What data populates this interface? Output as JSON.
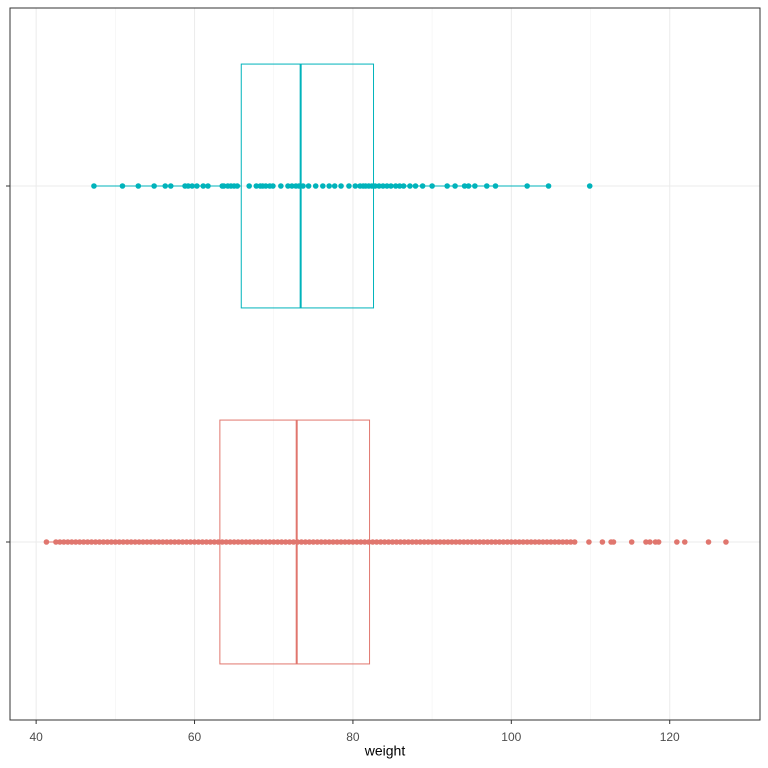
{
  "chart_data": {
    "type": "boxplot",
    "orientation": "horizontal",
    "x_label": "weight",
    "xlim": [
      36.7,
      131.4
    ],
    "xticks": [
      40,
      60,
      80,
      100,
      120
    ],
    "grid": true,
    "series": [
      {
        "color": "#e0766e",
        "q1": 63.2,
        "median": 72.9,
        "q3": 82.1,
        "whisker_low": 41.3,
        "whisker_high": 108,
        "points": [
          41.3,
          42.5,
          43,
          43.5,
          44,
          44.5,
          45,
          45.5,
          46,
          46.5,
          47,
          47.5,
          48,
          48.5,
          49,
          49.5,
          50,
          50.5,
          51,
          51.5,
          52,
          52.5,
          53,
          53.5,
          54,
          54.5,
          55,
          55.5,
          56,
          56.5,
          57,
          57.5,
          58,
          58.5,
          59,
          59.5,
          60,
          60.5,
          61,
          61.5,
          62,
          62.5,
          63,
          63.5,
          64,
          64.5,
          65,
          65.5,
          66,
          66.5,
          67,
          67.5,
          68,
          68.5,
          69,
          69.5,
          70,
          70.5,
          71,
          71.5,
          72,
          72.5,
          73,
          73.5,
          74,
          74.5,
          75,
          75.5,
          76,
          76.5,
          77,
          77.5,
          78,
          78.5,
          79,
          79.5,
          80,
          80.5,
          81,
          81.5,
          82,
          82.5,
          83,
          83.5,
          84,
          84.5,
          85,
          85.5,
          86,
          86.5,
          87,
          87.5,
          88,
          88.5,
          89,
          89.5,
          90,
          90.5,
          91,
          91.5,
          92,
          92.5,
          93,
          93.5,
          94,
          94.5,
          95,
          95.5,
          96,
          96.5,
          97,
          97.5,
          98,
          98.5,
          99,
          99.5,
          100,
          100.5,
          101,
          101.5,
          102,
          102.5,
          103,
          103.5,
          104,
          104.5,
          105,
          105.5,
          106,
          106.5,
          107,
          107.5,
          108,
          109.8,
          111.5,
          112.6,
          112.9,
          115.2,
          117,
          117.5,
          118.2,
          118.6,
          120.9,
          121.9,
          124.9,
          127.1
        ]
      },
      {
        "color": "#00b3bb",
        "q1": 65.9,
        "median": 73.4,
        "q3": 82.6,
        "whisker_low": 47.3,
        "whisker_high": 104.7,
        "points": [
          47.3,
          50.9,
          52.9,
          54.9,
          56.3,
          57,
          58.8,
          59.2,
          59.7,
          60.3,
          61.1,
          61.7,
          63.5,
          63.7,
          64.2,
          64.6,
          65,
          65.4,
          66.9,
          67.8,
          68.3,
          68.6,
          69,
          69.5,
          69.9,
          70.9,
          71.8,
          72.3,
          72.8,
          73.2,
          73.7,
          74.4,
          75.3,
          76.2,
          77,
          77.7,
          78.5,
          79.5,
          80.3,
          80.9,
          81.3,
          81.6,
          82,
          82.4,
          82.8,
          83.3,
          83.8,
          84.3,
          84.8,
          85.4,
          85.9,
          86.4,
          87.2,
          87.9,
          88.8,
          90,
          91.9,
          92.9,
          94.1,
          94.6,
          95.4,
          96.9,
          98,
          102,
          104.7,
          109.9
        ]
      }
    ]
  }
}
